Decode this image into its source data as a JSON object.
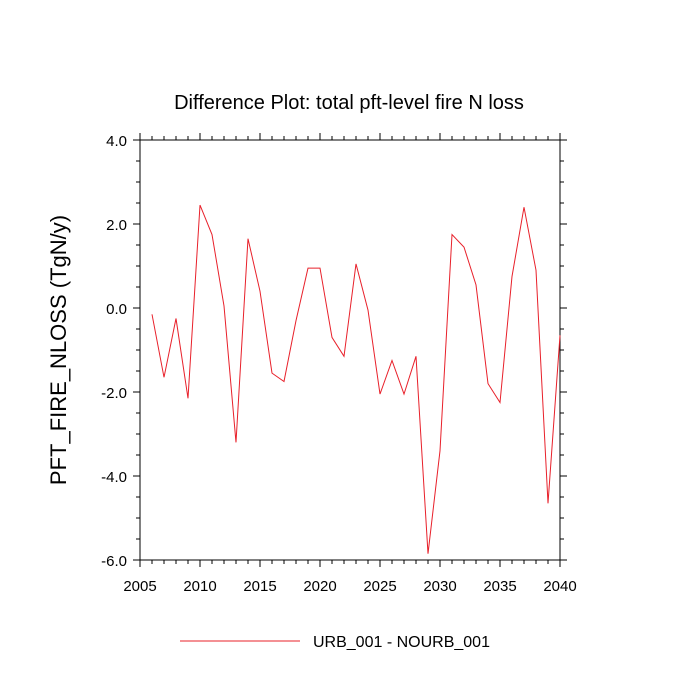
{
  "chart_data": {
    "type": "line",
    "title": "Difference Plot: total pft-level fire N loss",
    "ylabel": "PFT_FIRE_NLOSS  (TgN/y)",
    "xlabel": "",
    "xlim": [
      2005,
      2040
    ],
    "ylim": [
      -6.0,
      4.0
    ],
    "x_ticks": [
      2005,
      2010,
      2015,
      2020,
      2025,
      2030,
      2035,
      2040
    ],
    "x_tick_labels": [
      "2005",
      "2010",
      "2015",
      "2020",
      "2025",
      "2030",
      "2035",
      "2040"
    ],
    "y_ticks": [
      -6.0,
      -4.0,
      -2.0,
      0.0,
      2.0,
      4.0
    ],
    "y_tick_labels": [
      "-6.0",
      "-4.0",
      "-2.0",
      "0.0",
      "2.0",
      "4.0"
    ],
    "grid": false,
    "legend_position": "bottom",
    "x": [
      2006,
      2007,
      2008,
      2009,
      2010,
      2011,
      2012,
      2013,
      2014,
      2015,
      2016,
      2017,
      2018,
      2019,
      2020,
      2021,
      2022,
      2023,
      2024,
      2025,
      2026,
      2027,
      2028,
      2029,
      2030,
      2031,
      2032,
      2033,
      2034,
      2035,
      2036,
      2037,
      2038,
      2039,
      2040
    ],
    "series": [
      {
        "name": "URB_001 - NOURB_001",
        "color": "#e8202a",
        "values": [
          -0.15,
          -1.65,
          -0.25,
          -2.15,
          2.45,
          1.75,
          0.05,
          -3.2,
          1.65,
          0.4,
          -1.55,
          -1.75,
          -0.3,
          0.95,
          0.95,
          -0.7,
          -1.15,
          1.05,
          -0.05,
          -2.05,
          -1.25,
          -2.05,
          -1.15,
          -5.85,
          -3.4,
          1.75,
          1.45,
          0.55,
          -1.8,
          -2.25,
          0.75,
          2.4,
          0.9,
          -4.65,
          -0.65
        ]
      }
    ]
  }
}
